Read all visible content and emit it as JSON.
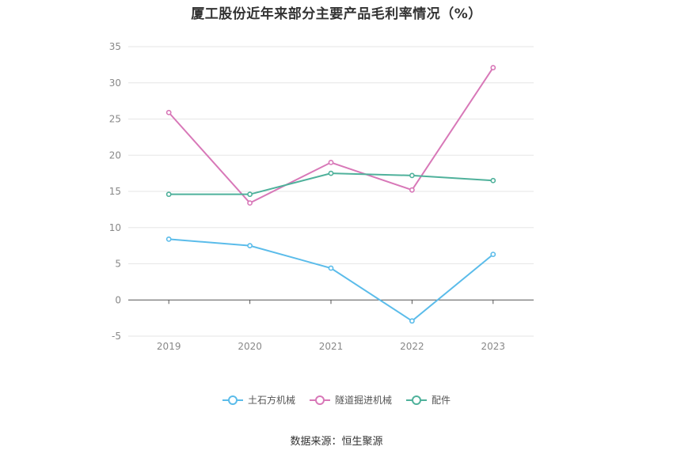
{
  "title": "厦工股份近年来部分主要产品毛利率情况（%）",
  "source": "数据来源：恒生聚源",
  "chart_data": {
    "type": "line",
    "title": "厦工股份近年来部分主要产品毛利率情况（%）",
    "x": [
      "2019",
      "2020",
      "2021",
      "2022",
      "2023"
    ],
    "ylim": [
      -5,
      35
    ],
    "yticks": [
      -5,
      0,
      5,
      10,
      15,
      20,
      25,
      30,
      35
    ],
    "grid": true,
    "legend_position": "bottom-center",
    "series": [
      {
        "name": "土石方机械",
        "color": "#5bbcea",
        "values": [
          8.4,
          7.5,
          4.4,
          -2.9,
          6.3
        ]
      },
      {
        "name": "隧道掘进机械",
        "color": "#d878b8",
        "values": [
          25.9,
          13.4,
          19.0,
          15.2,
          32.1
        ]
      },
      {
        "name": "配件",
        "color": "#4fb19b",
        "values": [
          14.6,
          14.6,
          17.5,
          17.2,
          16.5
        ]
      }
    ]
  }
}
